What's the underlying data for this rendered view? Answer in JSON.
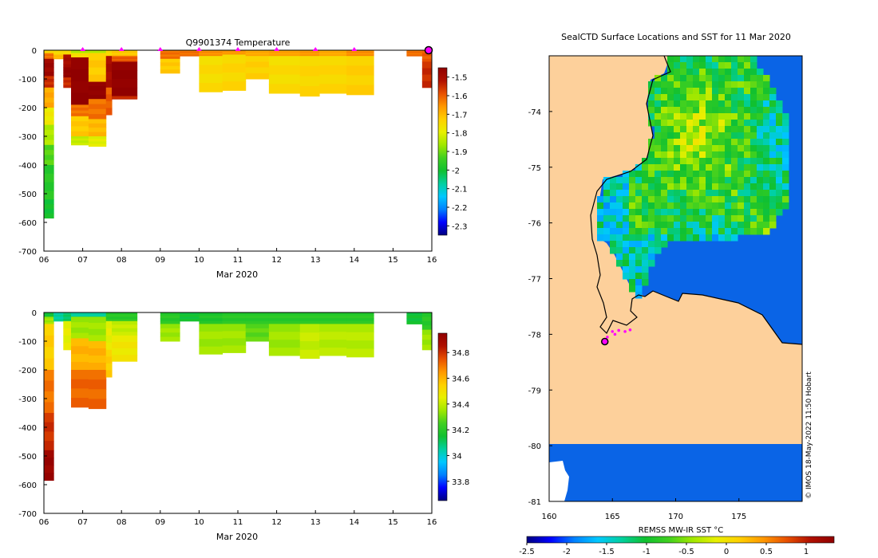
{
  "figure": {
    "top_title": "Q9901374  Temperature",
    "map_title": "SealCTD Surface Locations and SST for 11 Mar 2020",
    "credit": "© IMOS 18-May-2022 11:50 Hobart",
    "sst_label": "REMSS MW-IR SST °C"
  },
  "colors": {
    "jet": [
      "#000080",
      "#0000ff",
      "#0080ff",
      "#00c8ff",
      "#00d0a0",
      "#10c030",
      "#40d020",
      "#a0e800",
      "#e8f000",
      "#ffd000",
      "#ff9800",
      "#e85000",
      "#b01000",
      "#900000"
    ],
    "land": "#fdd09b",
    "ice_white": "#ffffff",
    "open_blue": "#0a64e6",
    "marker": "#ff00ff"
  },
  "chart_data": [
    {
      "type": "heatmap",
      "name": "temperature-section",
      "title": "Q9901374  Temperature",
      "xlabel": "Mar 2020",
      "xlim": [
        6,
        16
      ],
      "x_ticks": [
        6,
        7,
        8,
        9,
        10,
        11,
        12,
        13,
        14,
        15,
        16
      ],
      "x_tick_labels": [
        "06",
        "07",
        "08",
        "09",
        "10",
        "11",
        "12",
        "13",
        "14",
        "15",
        "16"
      ],
      "ylim": [
        -700,
        0
      ],
      "y_ticks": [
        0,
        -100,
        -200,
        -300,
        -400,
        -500,
        -600,
        -700
      ],
      "y_tick_labels": [
        "0",
        "-100",
        "-200",
        "-300",
        "-400",
        "-500",
        "-600",
        "-700"
      ],
      "colorbar": {
        "range": [
          -2.35,
          -1.45
        ],
        "ticks": [
          -1.5,
          -1.6,
          -1.7,
          -1.8,
          -1.9,
          -2,
          -2.1,
          -2.2,
          -2.3
        ],
        "tick_labels": [
          "-1.5",
          "-1.6",
          "-1.7",
          "-1.8",
          "-1.9",
          "-2",
          "-2.1",
          "-2.2",
          "-2.3"
        ]
      },
      "markers_day": [
        7,
        8,
        9,
        10,
        11,
        12,
        13,
        14
      ],
      "latest_marker_day": 16,
      "profiles": [
        {
          "t0": 6.0,
          "t1": 6.25,
          "depth": 585,
          "layers": [
            [
              0,
              10,
              -1.75
            ],
            [
              10,
              30,
              -1.62
            ],
            [
              30,
              90,
              -1.48
            ],
            [
              90,
              130,
              -1.55
            ],
            [
              130,
              200,
              -1.68
            ],
            [
              200,
              260,
              -1.78
            ],
            [
              260,
              330,
              -1.85
            ],
            [
              330,
              400,
              -1.92
            ],
            [
              400,
              520,
              -1.97
            ],
            [
              520,
              585,
              -2.0
            ]
          ]
        },
        {
          "t0": 6.25,
          "t1": 6.7,
          "depth": 30,
          "layers": [
            [
              0,
              15,
              -1.75
            ],
            [
              15,
              30,
              -1.7
            ]
          ]
        },
        {
          "t0": 6.5,
          "t1": 6.7,
          "depth": 130,
          "layers": [
            [
              0,
              15,
              -1.75
            ],
            [
              15,
              60,
              -1.5
            ],
            [
              60,
              95,
              -1.45
            ],
            [
              95,
              130,
              -1.55
            ]
          ]
        },
        {
          "t0": 6.7,
          "t1": 7.15,
          "depth": 330,
          "layers": [
            [
              0,
              10,
              -1.85
            ],
            [
              10,
              25,
              -1.75
            ],
            [
              25,
              190,
              -1.45
            ],
            [
              190,
              230,
              -1.62
            ],
            [
              230,
              300,
              -1.72
            ],
            [
              300,
              330,
              -1.83
            ]
          ]
        },
        {
          "t0": 7.15,
          "t1": 7.6,
          "depth": 335,
          "layers": [
            [
              0,
              10,
              -1.85
            ],
            [
              10,
              110,
              -1.72
            ],
            [
              110,
              170,
              -1.45
            ],
            [
              170,
              240,
              -1.62
            ],
            [
              240,
              300,
              -1.7
            ],
            [
              300,
              335,
              -1.8
            ]
          ]
        },
        {
          "t0": 7.6,
          "t1": 7.75,
          "depth": 225,
          "layers": [
            [
              0,
              20,
              -1.75
            ],
            [
              20,
              130,
              -1.5
            ],
            [
              130,
              225,
              -1.6
            ]
          ]
        },
        {
          "t0": 7.75,
          "t1": 8.4,
          "depth": 170,
          "layers": [
            [
              0,
              20,
              -1.72
            ],
            [
              20,
              40,
              -1.6
            ],
            [
              40,
              160,
              -1.45
            ],
            [
              160,
              170,
              -1.55
            ]
          ]
        },
        {
          "t0": 9.0,
          "t1": 9.5,
          "depth": 80,
          "layers": [
            [
              0,
              30,
              -1.62
            ],
            [
              30,
              80,
              -1.72
            ]
          ]
        },
        {
          "t0": 9.5,
          "t1": 10.0,
          "depth": 20,
          "layers": [
            [
              0,
              20,
              -1.62
            ]
          ]
        },
        {
          "t0": 10.0,
          "t1": 10.6,
          "depth": 145,
          "layers": [
            [
              0,
              20,
              -1.65
            ],
            [
              20,
              145,
              -1.75
            ]
          ]
        },
        {
          "t0": 10.6,
          "t1": 11.2,
          "depth": 140,
          "layers": [
            [
              0,
              15,
              -1.66
            ],
            [
              15,
              140,
              -1.74
            ]
          ]
        },
        {
          "t0": 11.2,
          "t1": 11.8,
          "depth": 100,
          "layers": [
            [
              0,
              20,
              -1.68
            ],
            [
              20,
              100,
              -1.73
            ]
          ]
        },
        {
          "t0": 11.8,
          "t1": 12.6,
          "depth": 150,
          "layers": [
            [
              0,
              20,
              -1.67
            ],
            [
              20,
              150,
              -1.75
            ]
          ]
        },
        {
          "t0": 12.6,
          "t1": 13.1,
          "depth": 160,
          "layers": [
            [
              0,
              20,
              -1.66
            ],
            [
              20,
              160,
              -1.74
            ]
          ]
        },
        {
          "t0": 13.1,
          "t1": 13.8,
          "depth": 150,
          "layers": [
            [
              0,
              20,
              -1.68
            ],
            [
              20,
              150,
              -1.74
            ]
          ]
        },
        {
          "t0": 13.8,
          "t1": 14.5,
          "depth": 155,
          "layers": [
            [
              0,
              20,
              -1.65
            ],
            [
              20,
              155,
              -1.73
            ]
          ]
        },
        {
          "t0": 15.35,
          "t1": 16.0,
          "depth": 20,
          "layers": [
            [
              0,
              20,
              -1.62
            ]
          ]
        },
        {
          "t0": 15.75,
          "t1": 16.1,
          "depth": 130,
          "layers": [
            [
              0,
              40,
              -1.6
            ],
            [
              40,
              130,
              -1.55
            ]
          ]
        }
      ]
    },
    {
      "type": "heatmap",
      "name": "salinity-section",
      "title": "",
      "xlabel": "Mar 2020",
      "xlim": [
        6,
        16
      ],
      "x_ticks": [
        6,
        7,
        8,
        9,
        10,
        11,
        12,
        13,
        14,
        15,
        16
      ],
      "x_tick_labels": [
        "06",
        "07",
        "08",
        "09",
        "10",
        "11",
        "12",
        "13",
        "14",
        "15",
        "16"
      ],
      "ylim": [
        -700,
        0
      ],
      "y_ticks": [
        0,
        -100,
        -200,
        -300,
        -400,
        -500,
        -600,
        -700
      ],
      "y_tick_labels": [
        "0",
        "-100",
        "-200",
        "-300",
        "-400",
        "-500",
        "-600",
        "-700"
      ],
      "colorbar": {
        "range": [
          33.65,
          34.95
        ],
        "ticks": [
          34.8,
          34.6,
          34.4,
          34.2,
          34,
          33.8
        ],
        "tick_labels": [
          "34.8",
          "34.6",
          "34.4",
          "34.2",
          "34",
          "33.8"
        ]
      },
      "profiles": [
        {
          "t0": 6.0,
          "t1": 6.25,
          "depth": 585,
          "layers": [
            [
              0,
              15,
              34.15
            ],
            [
              15,
              40,
              34.35
            ],
            [
              40,
              200,
              34.55
            ],
            [
              200,
              350,
              34.7
            ],
            [
              350,
              480,
              34.8
            ],
            [
              480,
              585,
              34.92
            ]
          ]
        },
        {
          "t0": 6.25,
          "t1": 6.7,
          "depth": 30,
          "layers": [
            [
              0,
              30,
              34.05
            ]
          ]
        },
        {
          "t0": 6.5,
          "t1": 6.7,
          "depth": 130,
          "layers": [
            [
              0,
              30,
              34.1
            ],
            [
              30,
              130,
              34.45
            ]
          ]
        },
        {
          "t0": 6.7,
          "t1": 7.15,
          "depth": 330,
          "layers": [
            [
              0,
              15,
              34.05
            ],
            [
              15,
              90,
              34.35
            ],
            [
              90,
              200,
              34.6
            ],
            [
              200,
              330,
              34.72
            ]
          ]
        },
        {
          "t0": 7.15,
          "t1": 7.6,
          "depth": 335,
          "layers": [
            [
              0,
              15,
              34.05
            ],
            [
              15,
              100,
              34.35
            ],
            [
              100,
              200,
              34.6
            ],
            [
              200,
              335,
              34.72
            ]
          ]
        },
        {
          "t0": 7.6,
          "t1": 7.75,
          "depth": 225,
          "layers": [
            [
              0,
              30,
              34.2
            ],
            [
              30,
              130,
              34.45
            ],
            [
              130,
              225,
              34.55
            ]
          ]
        },
        {
          "t0": 7.75,
          "t1": 8.4,
          "depth": 170,
          "layers": [
            [
              0,
              30,
              34.2
            ],
            [
              30,
              80,
              34.4
            ],
            [
              80,
              170,
              34.48
            ]
          ]
        },
        {
          "t0": 9.0,
          "t1": 9.5,
          "depth": 100,
          "layers": [
            [
              0,
              40,
              34.2
            ],
            [
              40,
              100,
              34.35
            ]
          ]
        },
        {
          "t0": 9.5,
          "t1": 10.0,
          "depth": 30,
          "layers": [
            [
              0,
              30,
              34.15
            ]
          ]
        },
        {
          "t0": 10.0,
          "t1": 10.6,
          "depth": 145,
          "layers": [
            [
              0,
              40,
              34.18
            ],
            [
              40,
              145,
              34.35
            ]
          ]
        },
        {
          "t0": 10.6,
          "t1": 11.2,
          "depth": 140,
          "layers": [
            [
              0,
              40,
              34.2
            ],
            [
              40,
              140,
              34.35
            ]
          ]
        },
        {
          "t0": 11.2,
          "t1": 11.8,
          "depth": 100,
          "layers": [
            [
              0,
              40,
              34.2
            ],
            [
              40,
              100,
              34.28
            ]
          ]
        },
        {
          "t0": 11.8,
          "t1": 12.6,
          "depth": 150,
          "layers": [
            [
              0,
              40,
              34.2
            ],
            [
              40,
              150,
              34.35
            ]
          ]
        },
        {
          "t0": 12.6,
          "t1": 13.1,
          "depth": 160,
          "layers": [
            [
              0,
              40,
              34.2
            ],
            [
              40,
              160,
              34.4
            ]
          ]
        },
        {
          "t0": 13.1,
          "t1": 13.8,
          "depth": 150,
          "layers": [
            [
              0,
              40,
              34.2
            ],
            [
              40,
              150,
              34.38
            ]
          ]
        },
        {
          "t0": 13.8,
          "t1": 14.5,
          "depth": 155,
          "layers": [
            [
              0,
              40,
              34.2
            ],
            [
              40,
              155,
              34.38
            ]
          ]
        },
        {
          "t0": 15.35,
          "t1": 16.0,
          "depth": 40,
          "layers": [
            [
              0,
              40,
              34.15
            ]
          ]
        },
        {
          "t0": 15.75,
          "t1": 16.1,
          "depth": 130,
          "layers": [
            [
              0,
              60,
              34.2
            ],
            [
              60,
              130,
              34.35
            ]
          ]
        }
      ]
    },
    {
      "type": "map",
      "name": "sst-map",
      "title": "SealCTD Surface Locations and SST for 11 Mar 2020",
      "lon_range": [
        160,
        180
      ],
      "lat_range": [
        -81,
        -73
      ],
      "lon_ticks": [
        160,
        165,
        170,
        175
      ],
      "lon_tick_labels": [
        "160",
        "165",
        "170",
        "175"
      ],
      "lat_ticks": [
        -74,
        -75,
        -76,
        -77,
        -78,
        -79,
        -80,
        -81
      ],
      "lat_tick_labels": [
        "-74",
        "-75",
        "-76",
        "-77",
        "-78",
        "-79",
        "-80",
        "-81"
      ],
      "sst_colorbar": {
        "range": [
          -2.5,
          1.35
        ],
        "ticks": [
          -2.5,
          -2,
          -1.5,
          -1,
          -0.5,
          0,
          0.5,
          1
        ],
        "tick_labels": [
          "-2.5",
          "-2",
          "-1.5",
          "-1",
          "-0.5",
          "0",
          "0.5",
          "1"
        ],
        "label": "REMSS MW-IR SST °C"
      },
      "track_points": [
        {
          "lon": 164.6,
          "lat": -78.05
        },
        {
          "lon": 165.0,
          "lat": -77.95
        },
        {
          "lon": 165.5,
          "lat": -77.93
        },
        {
          "lon": 166.0,
          "lat": -77.95
        },
        {
          "lon": 166.4,
          "lat": -77.92
        },
        {
          "lon": 165.2,
          "lat": -78.0
        }
      ],
      "latest_position": {
        "lon": 164.4,
        "lat": -78.13
      }
    }
  ]
}
